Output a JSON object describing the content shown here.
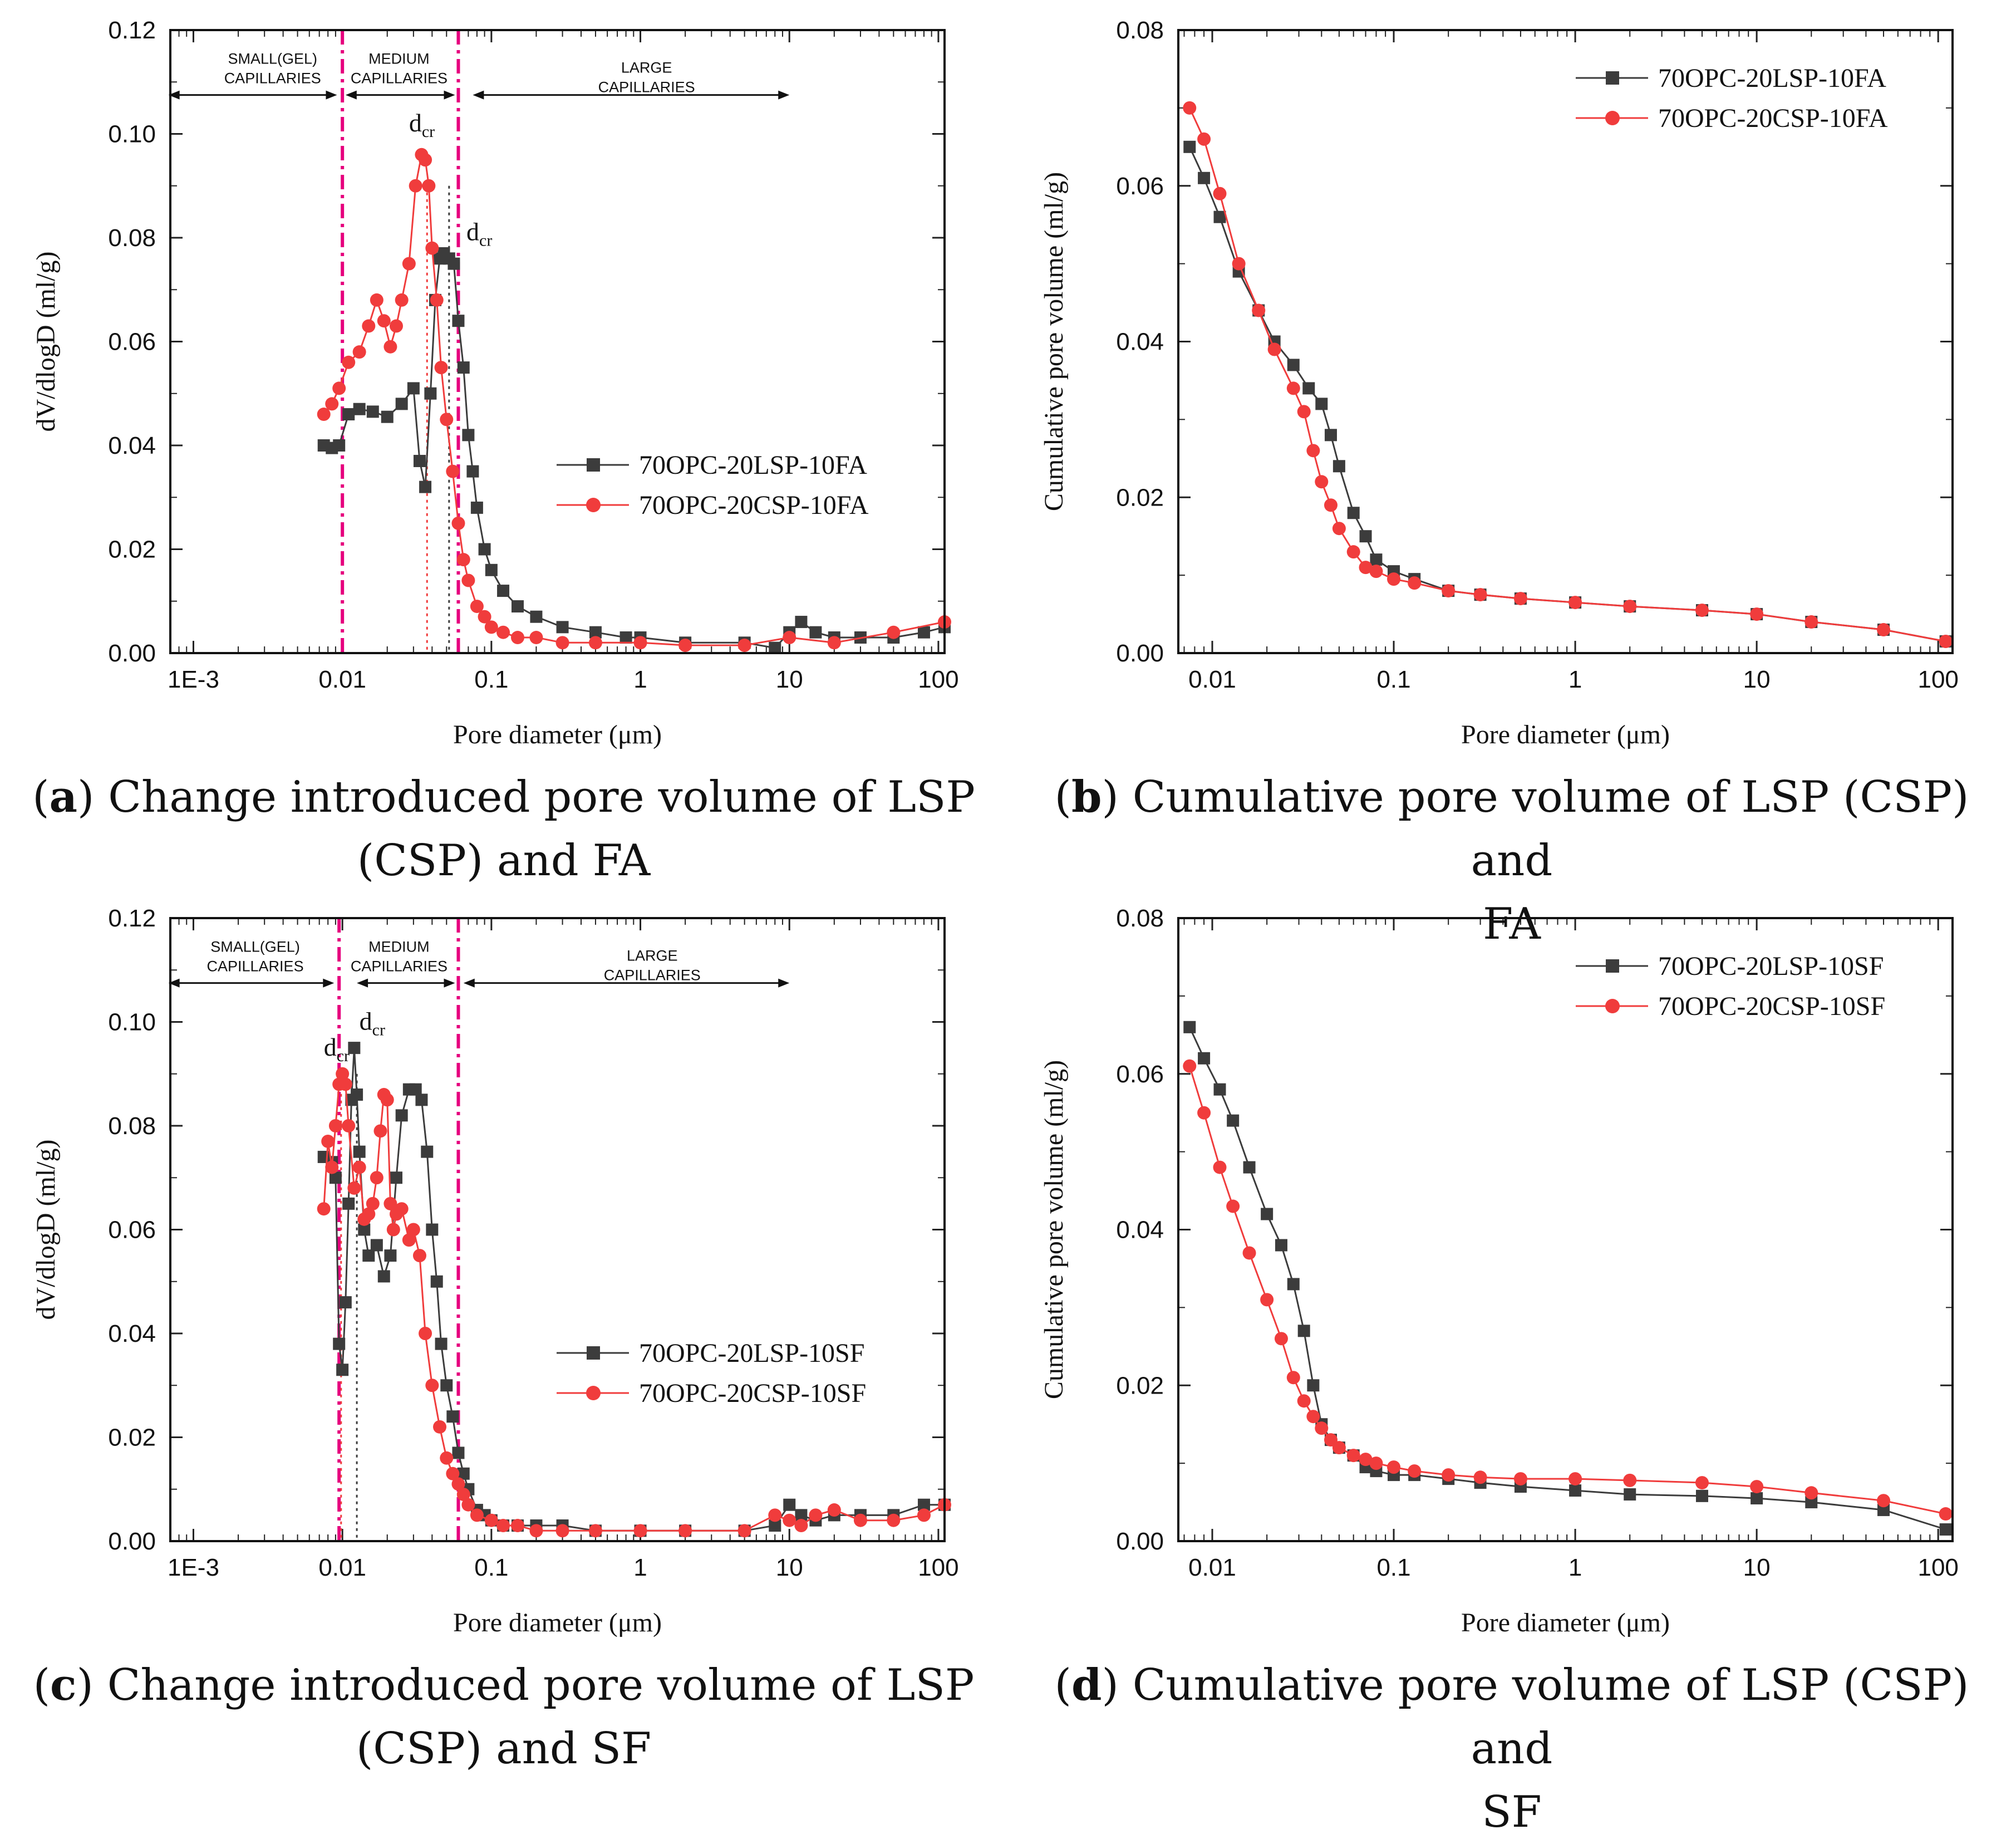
{
  "colors": {
    "lsp": "#3c3c3c",
    "csp": "#f03c3c",
    "region": "#e6007e"
  },
  "chart_data": [
    {
      "id": "a",
      "type": "line",
      "xscale": "log",
      "xlim": [
        0.0007,
        110
      ],
      "ylim": [
        0,
        0.12
      ],
      "xlabel": "Pore diameter (μm)",
      "ylabel": "dV/dlogD (ml/g)",
      "xtick_values": [
        0.001,
        0.01,
        0.1,
        1,
        10,
        100
      ],
      "xtick_labels": [
        "1E-3",
        "0.01",
        "0.1",
        "1",
        "10",
        "100"
      ],
      "ytick_values": [
        0,
        0.02,
        0.04,
        0.06,
        0.08,
        0.1,
        0.12
      ],
      "ytick_labels": [
        "0.00",
        "0.02",
        "0.04",
        "0.06",
        "0.08",
        "0.10",
        "0.12"
      ],
      "region_lines": [
        0.01,
        0.06
      ],
      "regions": [
        {
          "lines": [
            "SMALL(GEL)",
            "CAPILLARIES"
          ],
          "x": 0.0034,
          "y": 0.1135,
          "arrow": [
            0.00068,
            0.0092
          ]
        },
        {
          "lines": [
            "MEDIUM",
            "CAPILLARIES"
          ],
          "x": 0.024,
          "y": 0.1135,
          "arrow": [
            0.0105,
            0.057
          ]
        },
        {
          "lines": [
            "LARGE",
            "CAPILLARIES"
          ],
          "x": 1.1,
          "y": 0.1118,
          "arrow": [
            0.075,
            10
          ]
        }
      ],
      "dcr_marks": [
        {
          "x": 0.037,
          "color": "csp",
          "label": "d",
          "sub": "cr",
          "lx": 0.028,
          "ly": 0.1005
        },
        {
          "x": 0.052,
          "color": "lsp",
          "label": "d",
          "sub": "cr",
          "lx": 0.068,
          "ly": 0.0795
        }
      ],
      "legend": {
        "position": "center-right"
      },
      "series": [
        {
          "name": "70OPC-20LSP-10FA",
          "color": "lsp",
          "marker": "square",
          "x": [
            0.0075,
            0.0085,
            0.0095,
            0.011,
            0.013,
            0.016,
            0.02,
            0.025,
            0.03,
            0.033,
            0.036,
            0.039,
            0.042,
            0.045,
            0.048,
            0.052,
            0.056,
            0.06,
            0.065,
            0.07,
            0.075,
            0.08,
            0.09,
            0.1,
            0.12,
            0.15,
            0.2,
            0.3,
            0.5,
            0.8,
            1,
            2,
            5,
            8,
            10,
            12,
            15,
            20,
            30,
            50,
            80,
            110
          ],
          "y": [
            0.04,
            0.0395,
            0.04,
            0.046,
            0.047,
            0.0465,
            0.0455,
            0.048,
            0.051,
            0.037,
            0.032,
            0.05,
            0.068,
            0.076,
            0.077,
            0.076,
            0.075,
            0.064,
            0.055,
            0.042,
            0.035,
            0.028,
            0.02,
            0.016,
            0.012,
            0.009,
            0.007,
            0.005,
            0.004,
            0.003,
            0.003,
            0.002,
            0.002,
            0.001,
            0.004,
            0.006,
            0.004,
            0.003,
            0.003,
            0.003,
            0.004,
            0.005
          ]
        },
        {
          "name": "70OPC-20CSP-10FA",
          "color": "csp",
          "marker": "circle",
          "x": [
            0.0075,
            0.0085,
            0.0095,
            0.011,
            0.013,
            0.015,
            0.017,
            0.019,
            0.021,
            0.023,
            0.025,
            0.028,
            0.031,
            0.034,
            0.036,
            0.038,
            0.04,
            0.043,
            0.046,
            0.05,
            0.055,
            0.06,
            0.065,
            0.07,
            0.08,
            0.09,
            0.1,
            0.12,
            0.15,
            0.2,
            0.3,
            0.5,
            1,
            2,
            5,
            10,
            20,
            50,
            110
          ],
          "y": [
            0.046,
            0.048,
            0.051,
            0.056,
            0.058,
            0.063,
            0.068,
            0.064,
            0.059,
            0.063,
            0.068,
            0.075,
            0.09,
            0.096,
            0.095,
            0.09,
            0.078,
            0.068,
            0.055,
            0.045,
            0.035,
            0.025,
            0.018,
            0.014,
            0.009,
            0.007,
            0.005,
            0.004,
            0.003,
            0.003,
            0.002,
            0.002,
            0.002,
            0.0015,
            0.0015,
            0.003,
            0.002,
            0.004,
            0.006
          ]
        }
      ]
    },
    {
      "id": "b",
      "type": "line",
      "xscale": "log",
      "xlim": [
        0.0065,
        120
      ],
      "ylim": [
        0,
        0.08
      ],
      "xlabel": "Pore diameter (μm)",
      "ylabel": "Cumulative pore volume (ml/g)",
      "xtick_values": [
        0.01,
        0.1,
        1,
        10,
        100
      ],
      "xtick_labels": [
        "0.01",
        "0.1",
        "1",
        "10",
        "100"
      ],
      "ytick_values": [
        0,
        0.02,
        0.04,
        0.06,
        0.08
      ],
      "ytick_labels": [
        "0.00",
        "0.02",
        "0.04",
        "0.06",
        "0.08"
      ],
      "legend": {
        "position": "top-right"
      },
      "series": [
        {
          "name": "70OPC-20LSP-10FA",
          "color": "lsp",
          "marker": "square",
          "x": [
            0.0075,
            0.009,
            0.011,
            0.014,
            0.018,
            0.022,
            0.028,
            0.034,
            0.04,
            0.045,
            0.05,
            0.06,
            0.07,
            0.08,
            0.1,
            0.13,
            0.2,
            0.3,
            0.5,
            1,
            2,
            5,
            10,
            20,
            50,
            110
          ],
          "y": [
            0.065,
            0.061,
            0.056,
            0.049,
            0.044,
            0.04,
            0.037,
            0.034,
            0.032,
            0.028,
            0.024,
            0.018,
            0.015,
            0.012,
            0.0105,
            0.0095,
            0.008,
            0.0075,
            0.007,
            0.0065,
            0.006,
            0.0055,
            0.005,
            0.004,
            0.003,
            0.0015
          ]
        },
        {
          "name": "70OPC-20CSP-10FA",
          "color": "csp",
          "marker": "circle",
          "x": [
            0.0075,
            0.009,
            0.011,
            0.014,
            0.018,
            0.022,
            0.028,
            0.032,
            0.036,
            0.04,
            0.045,
            0.05,
            0.06,
            0.07,
            0.08,
            0.1,
            0.13,
            0.2,
            0.3,
            0.5,
            1,
            2,
            5,
            10,
            20,
            50,
            110
          ],
          "y": [
            0.07,
            0.066,
            0.059,
            0.05,
            0.044,
            0.039,
            0.034,
            0.031,
            0.026,
            0.022,
            0.019,
            0.016,
            0.013,
            0.011,
            0.0105,
            0.0095,
            0.009,
            0.008,
            0.0075,
            0.007,
            0.0065,
            0.006,
            0.0055,
            0.005,
            0.004,
            0.003,
            0.0015
          ]
        }
      ]
    },
    {
      "id": "c",
      "type": "line",
      "xscale": "log",
      "xlim": [
        0.0007,
        110
      ],
      "ylim": [
        0,
        0.12
      ],
      "xlabel": "Pore diameter (μm)",
      "ylabel": "dV/dlogD (ml/g)",
      "xtick_values": [
        0.001,
        0.01,
        0.1,
        1,
        10,
        100
      ],
      "xtick_labels": [
        "1E-3",
        "0.01",
        "0.1",
        "1",
        "10",
        "100"
      ],
      "ytick_values": [
        0,
        0.02,
        0.04,
        0.06,
        0.08,
        0.1,
        0.12
      ],
      "ytick_labels": [
        "0.00",
        "0.02",
        "0.04",
        "0.06",
        "0.08",
        "0.10",
        "0.12"
      ],
      "region_lines": [
        0.0095,
        0.06
      ],
      "regions": [
        {
          "lines": [
            "SMALL(GEL)",
            "CAPILLARIES"
          ],
          "x": 0.0026,
          "y": 0.1135,
          "arrow": [
            0.00068,
            0.0088
          ]
        },
        {
          "lines": [
            "MEDIUM",
            "CAPILLARIES"
          ],
          "x": 0.024,
          "y": 0.1135,
          "arrow": [
            0.0125,
            0.057
          ]
        },
        {
          "lines": [
            "LARGE",
            "CAPILLARIES"
          ],
          "x": 1.2,
          "y": 0.1118,
          "arrow": [
            0.065,
            10
          ]
        }
      ],
      "dcr_marks": [
        {
          "x": 0.0125,
          "color": "lsp",
          "label": "d",
          "sub": "cr",
          "lx": 0.013,
          "ly": 0.0985
        },
        {
          "x": 0.0098,
          "color": "csp",
          "label": "d",
          "sub": "cr",
          "lx": 0.0075,
          "ly": 0.0935
        }
      ],
      "legend": {
        "position": "center-right"
      },
      "series": [
        {
          "name": "70OPC-20LSP-10SF",
          "color": "lsp",
          "marker": "square",
          "x": [
            0.0075,
            0.0085,
            0.009,
            0.0095,
            0.01,
            0.0105,
            0.011,
            0.0115,
            0.012,
            0.0125,
            0.013,
            0.014,
            0.015,
            0.017,
            0.019,
            0.021,
            0.023,
            0.025,
            0.028,
            0.031,
            0.034,
            0.037,
            0.04,
            0.043,
            0.046,
            0.05,
            0.055,
            0.06,
            0.065,
            0.07,
            0.08,
            0.09,
            0.1,
            0.12,
            0.15,
            0.2,
            0.3,
            0.5,
            1,
            2,
            5,
            8,
            10,
            12,
            15,
            20,
            30,
            50,
            80,
            110
          ],
          "y": [
            0.074,
            0.073,
            0.07,
            0.038,
            0.033,
            0.046,
            0.065,
            0.085,
            0.095,
            0.086,
            0.075,
            0.06,
            0.055,
            0.057,
            0.051,
            0.055,
            0.07,
            0.082,
            0.087,
            0.087,
            0.085,
            0.075,
            0.06,
            0.05,
            0.038,
            0.03,
            0.024,
            0.017,
            0.013,
            0.01,
            0.006,
            0.005,
            0.004,
            0.003,
            0.003,
            0.003,
            0.003,
            0.002,
            0.002,
            0.002,
            0.002,
            0.003,
            0.007,
            0.005,
            0.004,
            0.005,
            0.005,
            0.005,
            0.007,
            0.007
          ]
        },
        {
          "name": "70OPC-20CSP-10SF",
          "color": "csp",
          "marker": "circle",
          "x": [
            0.0075,
            0.008,
            0.0085,
            0.009,
            0.0095,
            0.01,
            0.0105,
            0.011,
            0.012,
            0.013,
            0.014,
            0.015,
            0.016,
            0.017,
            0.018,
            0.019,
            0.02,
            0.021,
            0.022,
            0.023,
            0.025,
            0.028,
            0.03,
            0.033,
            0.036,
            0.04,
            0.045,
            0.05,
            0.055,
            0.06,
            0.065,
            0.07,
            0.08,
            0.1,
            0.12,
            0.15,
            0.2,
            0.3,
            0.5,
            1,
            2,
            5,
            8,
            10,
            12,
            15,
            20,
            30,
            50,
            80,
            110
          ],
          "y": [
            0.064,
            0.077,
            0.072,
            0.08,
            0.088,
            0.09,
            0.088,
            0.08,
            0.068,
            0.072,
            0.062,
            0.063,
            0.065,
            0.07,
            0.079,
            0.086,
            0.085,
            0.065,
            0.06,
            0.063,
            0.064,
            0.058,
            0.06,
            0.055,
            0.04,
            0.03,
            0.022,
            0.016,
            0.013,
            0.011,
            0.009,
            0.007,
            0.005,
            0.004,
            0.003,
            0.003,
            0.002,
            0.002,
            0.002,
            0.002,
            0.002,
            0.002,
            0.005,
            0.004,
            0.003,
            0.005,
            0.006,
            0.004,
            0.004,
            0.005,
            0.007
          ]
        }
      ]
    },
    {
      "id": "d",
      "type": "line",
      "xscale": "log",
      "xlim": [
        0.0065,
        120
      ],
      "ylim": [
        0,
        0.08
      ],
      "xlabel": "Pore diameter (μm)",
      "ylabel": "Cumulative pore volume (ml/g)",
      "xtick_values": [
        0.01,
        0.1,
        1,
        10,
        100
      ],
      "xtick_labels": [
        "0.01",
        "0.1",
        "1",
        "10",
        "100"
      ],
      "ytick_values": [
        0,
        0.02,
        0.04,
        0.06,
        0.08
      ],
      "ytick_labels": [
        "0.00",
        "0.02",
        "0.04",
        "0.06",
        "0.08"
      ],
      "legend": {
        "position": "top-right"
      },
      "series": [
        {
          "name": "70OPC-20LSP-10SF",
          "color": "lsp",
          "marker": "square",
          "x": [
            0.0075,
            0.009,
            0.011,
            0.013,
            0.016,
            0.02,
            0.024,
            0.028,
            0.032,
            0.036,
            0.04,
            0.045,
            0.05,
            0.06,
            0.07,
            0.08,
            0.1,
            0.13,
            0.2,
            0.3,
            0.5,
            1,
            2,
            5,
            10,
            20,
            50,
            110
          ],
          "y": [
            0.066,
            0.062,
            0.058,
            0.054,
            0.048,
            0.042,
            0.038,
            0.033,
            0.027,
            0.02,
            0.015,
            0.013,
            0.012,
            0.011,
            0.0095,
            0.009,
            0.0085,
            0.0085,
            0.008,
            0.0075,
            0.007,
            0.0065,
            0.006,
            0.0058,
            0.0055,
            0.005,
            0.004,
            0.0015
          ]
        },
        {
          "name": "70OPC-20CSP-10SF",
          "color": "csp",
          "marker": "circle",
          "x": [
            0.0075,
            0.009,
            0.011,
            0.013,
            0.016,
            0.02,
            0.024,
            0.028,
            0.032,
            0.036,
            0.04,
            0.045,
            0.05,
            0.06,
            0.07,
            0.08,
            0.1,
            0.13,
            0.2,
            0.3,
            0.5,
            1,
            2,
            5,
            10,
            20,
            50,
            110
          ],
          "y": [
            0.061,
            0.055,
            0.048,
            0.043,
            0.037,
            0.031,
            0.026,
            0.021,
            0.018,
            0.016,
            0.0145,
            0.013,
            0.012,
            0.011,
            0.0105,
            0.01,
            0.0095,
            0.009,
            0.0085,
            0.0082,
            0.008,
            0.008,
            0.0078,
            0.0075,
            0.007,
            0.0062,
            0.0052,
            0.0035
          ]
        }
      ]
    }
  ],
  "captions": [
    {
      "letter": "a",
      "line1": ") Change introduced pore volume of LSP",
      "line2": "(CSP) and FA"
    },
    {
      "letter": "b",
      "line1": ") Cumulative pore volume of LSP (CSP) and",
      "line2": "FA"
    },
    {
      "letter": "c",
      "line1": ") Change introduced pore volume of LSP",
      "line2": "(CSP) and SF"
    },
    {
      "letter": "d",
      "line1": ") Cumulative pore volume of LSP (CSP) and",
      "line2": "SF"
    }
  ]
}
